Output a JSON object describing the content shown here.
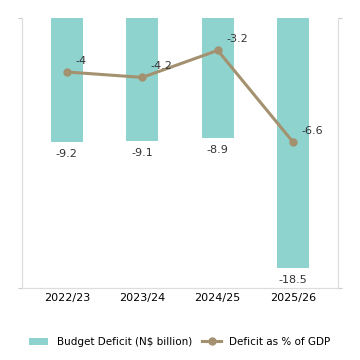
{
  "chart_data": {
    "type": "bar",
    "categories": [
      "2022/23",
      "2023/24",
      "2024/25",
      "2025/26"
    ],
    "series": [
      {
        "name": "Budget Deficit (N$ billion)",
        "type": "bar",
        "color": "#8fd3cf",
        "values": [
          -9.2,
          -9.1,
          -8.9,
          -18.5
        ]
      },
      {
        "name": "Deficit as % of GDP",
        "type": "line",
        "color": "#a3916f",
        "marker": "o",
        "line_style": "solid",
        "axis": "y2",
        "values": [
          -4,
          -4.2,
          -3.2,
          -6.6
        ]
      }
    ],
    "ylim": [
      -20,
      0
    ],
    "yticks": [
      -20,
      0
    ],
    "y2lim": [
      -12,
      -2
    ],
    "y2ticks": [
      -12,
      -2
    ],
    "data_labels": true,
    "tick_labels": "x",
    "legend": "bottom",
    "grid": false
  }
}
